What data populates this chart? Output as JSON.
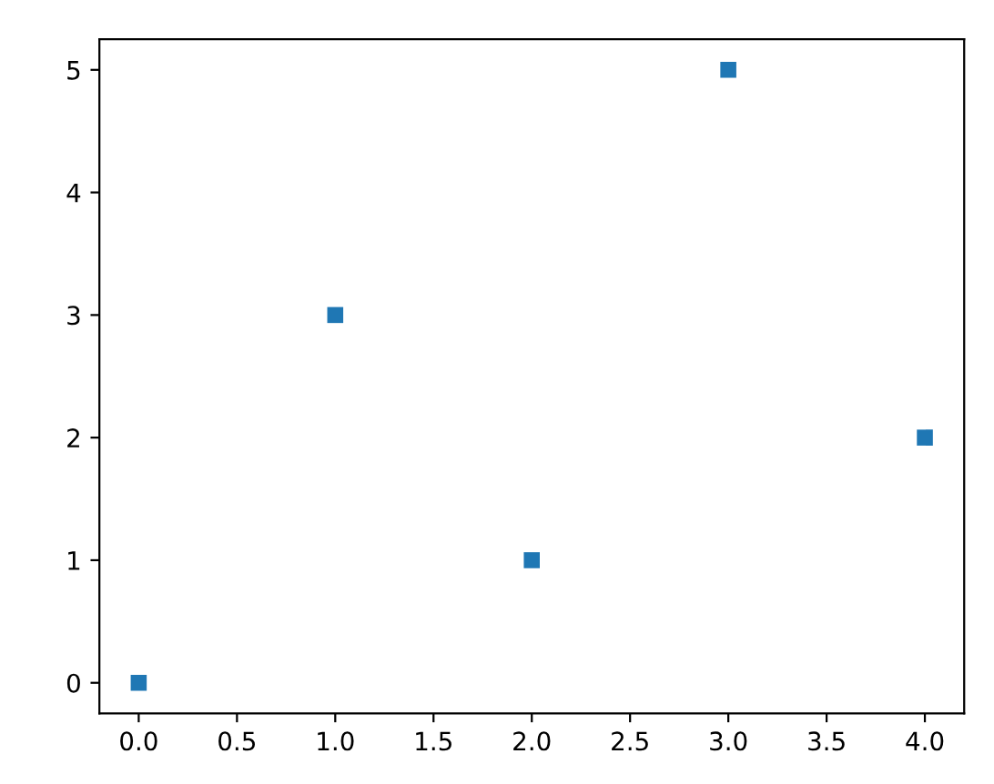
{
  "chart_data": {
    "type": "scatter",
    "x": [
      0,
      1,
      2,
      3,
      4
    ],
    "series": [
      {
        "color": "#1f77b4",
        "values": [
          0,
          3,
          1,
          5,
          2
        ]
      }
    ],
    "marker": "square",
    "xlim": [
      -0.2,
      4.2
    ],
    "ylim": [
      -0.25,
      5.25
    ],
    "xticks": [
      {
        "value": 0,
        "label": "0.0"
      },
      {
        "value": 0.5,
        "label": "0.5"
      },
      {
        "value": 1,
        "label": "1.0"
      },
      {
        "value": 1.5,
        "label": "1.5"
      },
      {
        "value": 2,
        "label": "2.0"
      },
      {
        "value": 2.5,
        "label": "2.5"
      },
      {
        "value": 3,
        "label": "3.0"
      },
      {
        "value": 3.5,
        "label": "3.5"
      },
      {
        "value": 4,
        "label": "4.0"
      }
    ],
    "yticks": [
      0,
      1,
      2,
      3,
      4,
      5
    ],
    "grid": false,
    "legend": false
  }
}
